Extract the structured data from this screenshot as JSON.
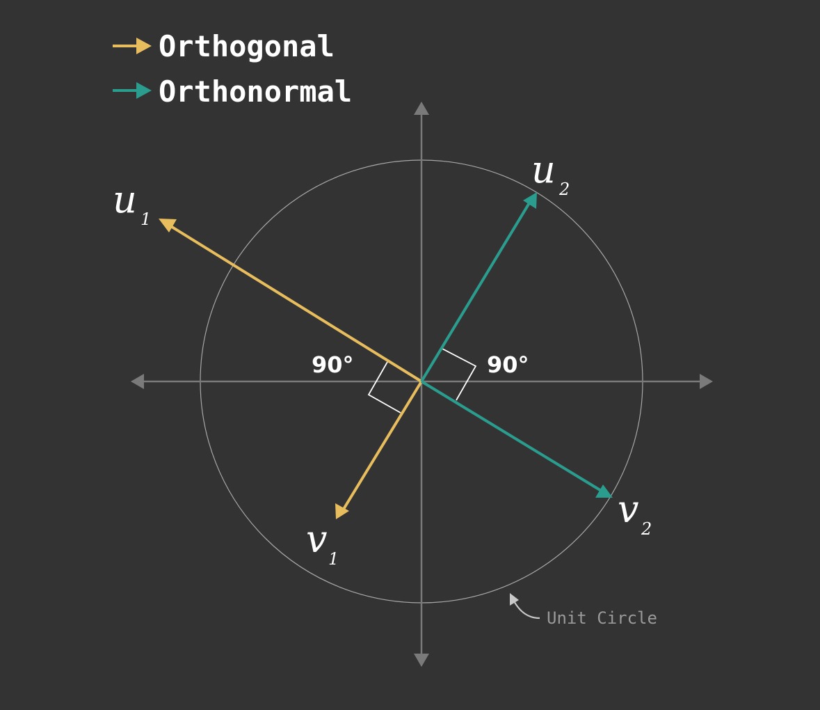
{
  "legend": {
    "orthogonal_label": "Orthogonal",
    "orthonormal_label": "Orthonormal"
  },
  "colors": {
    "background": "#333333",
    "orthogonal": "#e8bd5e",
    "orthonormal": "#2a9d8f",
    "axis": "#7a7a7a",
    "circle": "#a8a8a8",
    "text": "#ffffff",
    "note": "#9a9a9a"
  },
  "vectors": {
    "u1": {
      "name": "u",
      "subscript": "1"
    },
    "v1": {
      "name": "v",
      "subscript": "1"
    },
    "u2": {
      "name": "u",
      "subscript": "2"
    },
    "v2": {
      "name": "v",
      "subscript": "2"
    }
  },
  "angles": {
    "left_label": "90°",
    "right_label": "90°"
  },
  "annotation": {
    "unit_circle_label": "Unit Circle"
  }
}
